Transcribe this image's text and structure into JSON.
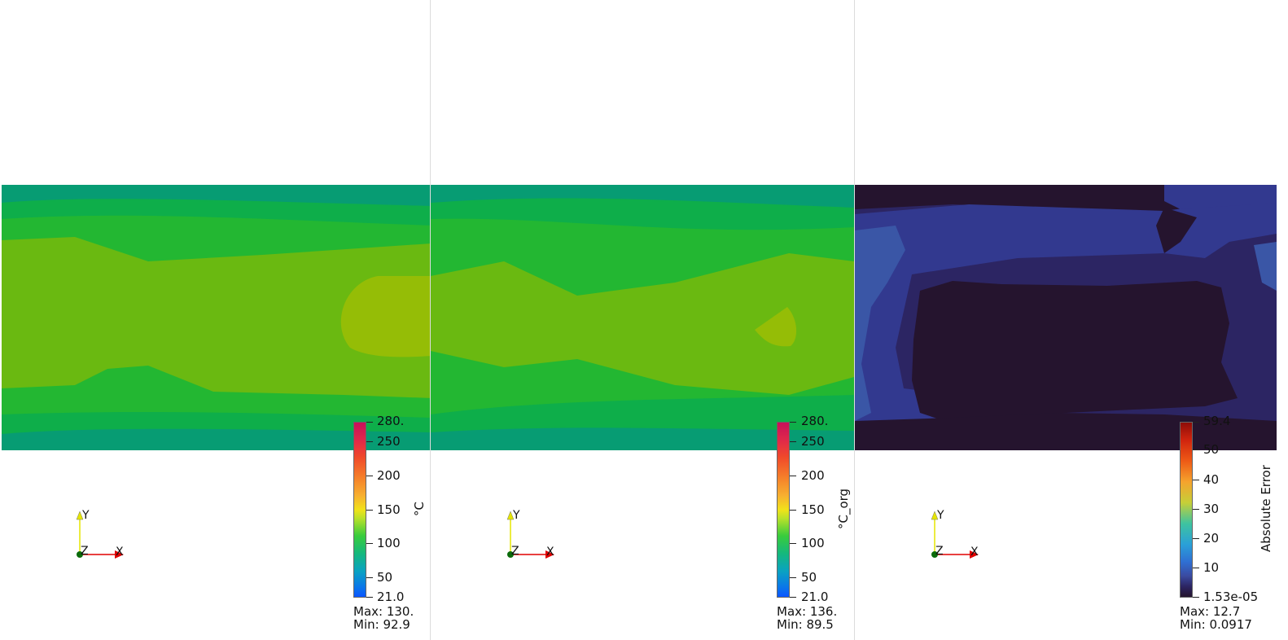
{
  "views": [
    {
      "color_title": "°C",
      "ticks": [
        "280.",
        "250",
        "200",
        "150",
        "100",
        "50",
        "21.0"
      ],
      "max_label": "Max: 130.",
      "min_label": "Min: 92.9",
      "colormap": "rainbow"
    },
    {
      "color_title": "°C_org",
      "ticks": [
        "280.",
        "250",
        "200",
        "150",
        "100",
        "50",
        "21.0"
      ],
      "max_label": "Max: 136.",
      "min_label": "Min: 89.5",
      "colormap": "rainbow"
    },
    {
      "color_title": "Absolute Error",
      "ticks": [
        "59.4",
        "50",
        "40",
        "30",
        "20",
        "10",
        "1.53e-05"
      ],
      "max_label": "Max: 12.7",
      "min_label": "Min: 0.0917",
      "colormap": "error"
    }
  ],
  "axes": {
    "x": "X",
    "y": "Y",
    "z": "Z"
  },
  "colors": {
    "field_teal": "#079c73",
    "field_green1": "#0eae4a",
    "field_green2": "#23b732",
    "field_green3": "#6ab911",
    "field_yellowgreen": "#95bd06",
    "err_darkest": "#25142e",
    "err_dark": "#2c2563",
    "err_mid": "#32398f",
    "err_light": "#3a56a6",
    "axis_x": "#e00000",
    "axis_y": "#e5e500",
    "axis_origin": "#0b6b0b"
  }
}
